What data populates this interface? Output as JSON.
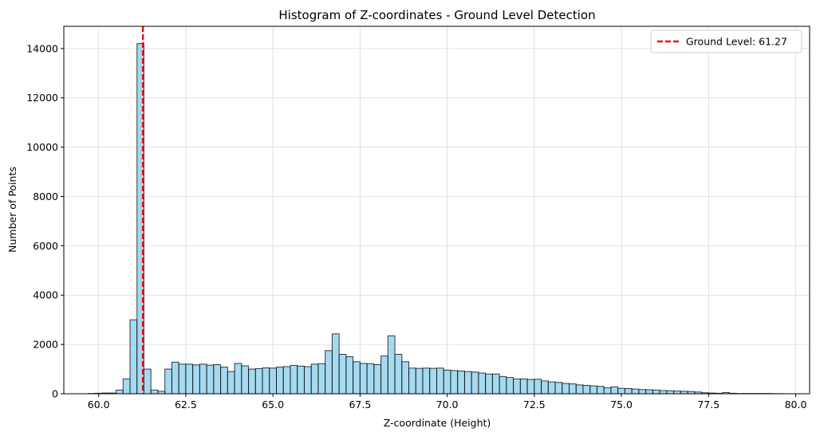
{
  "chart_data": {
    "type": "bar",
    "title": "Histogram of Z-coordinates - Ground Level Detection",
    "xlabel": "Z-coordinate (Height)",
    "ylabel": "Number of Points",
    "xlim": [
      59.0,
      80.4
    ],
    "ylim": [
      0,
      14900
    ],
    "xticks": [
      60.0,
      62.5,
      65.0,
      67.5,
      70.0,
      72.5,
      75.0,
      77.5,
      80.0
    ],
    "xtick_labels": [
      "60.0",
      "62.5",
      "65.0",
      "67.5",
      "70.0",
      "72.5",
      "75.0",
      "77.5",
      "80.0"
    ],
    "yticks": [
      0,
      2000,
      4000,
      6000,
      8000,
      10000,
      12000,
      14000
    ],
    "ytick_labels": [
      "0",
      "2000",
      "4000",
      "6000",
      "8000",
      "10000",
      "12000",
      "14000"
    ],
    "grid": true,
    "bar_color": "#87ceeb",
    "bar_edge_color": "#000000",
    "bin_start": 59.7,
    "bin_width": 0.2,
    "values": [
      10,
      20,
      30,
      30,
      150,
      600,
      3000,
      14200,
      1000,
      150,
      100,
      1000,
      1280,
      1200,
      1200,
      1170,
      1200,
      1160,
      1180,
      1080,
      900,
      1230,
      1130,
      1000,
      1020,
      1050,
      1040,
      1080,
      1100,
      1150,
      1120,
      1100,
      1200,
      1220,
      1750,
      2430,
      1600,
      1500,
      1300,
      1230,
      1220,
      1180,
      1530,
      2350,
      1600,
      1300,
      1040,
      1030,
      1040,
      1030,
      1040,
      960,
      940,
      920,
      900,
      880,
      840,
      800,
      800,
      700,
      660,
      600,
      600,
      580,
      590,
      520,
      480,
      460,
      420,
      400,
      360,
      340,
      320,
      300,
      240,
      280,
      220,
      210,
      190,
      170,
      160,
      150,
      130,
      120,
      110,
      100,
      90,
      70,
      40,
      30,
      20,
      50,
      20,
      10,
      10,
      10,
      10,
      10,
      5,
      3
    ],
    "reference_line": {
      "x": 61.27,
      "color": "#ee1111",
      "style": "dashed",
      "label": "Ground Level: 61.27"
    },
    "legend": {
      "position": "top-right",
      "entries": [
        "Ground Level: 61.27"
      ]
    }
  }
}
